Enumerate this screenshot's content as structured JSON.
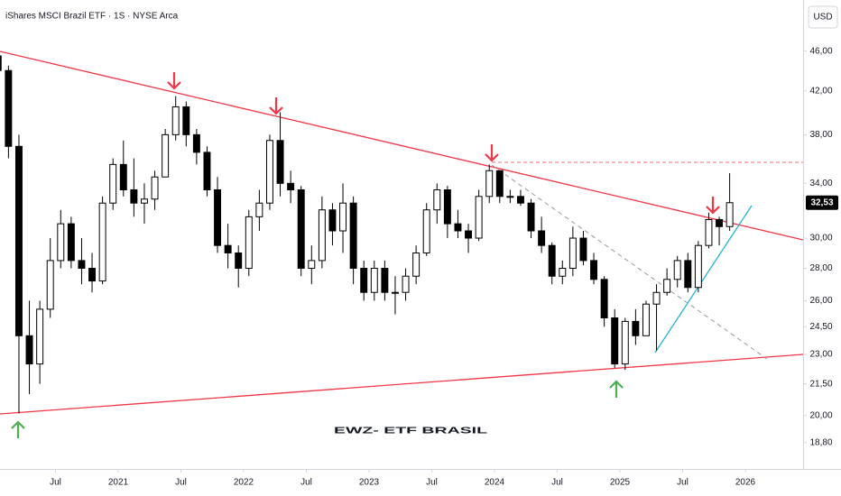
{
  "chart_data": {
    "type": "candlestick",
    "title": "iShares MSCI Brazil ETF · 1S · NYSE Arca",
    "currency": "USD",
    "annotation": "EWZ- ETF BRASIL",
    "log_scale": true,
    "up_color": "#ffffff",
    "down_color": "#000000",
    "x": [
      "2020-01",
      "2020-02",
      "2020-03",
      "2020-04",
      "2020-05",
      "2020-06",
      "2020-07",
      "2020-08",
      "2020-09",
      "2020-10",
      "2020-11",
      "2020-12",
      "2021-01",
      "2021-02",
      "2021-03",
      "2021-04",
      "2021-05",
      "2021-06",
      "2021-07",
      "2021-08",
      "2021-09",
      "2021-10",
      "2021-11",
      "2021-12",
      "2022-01",
      "2022-02",
      "2022-03",
      "2022-04",
      "2022-05",
      "2022-06",
      "2022-07",
      "2022-08",
      "2022-09",
      "2022-10",
      "2022-11",
      "2022-12",
      "2023-01",
      "2023-02",
      "2023-03",
      "2023-04",
      "2023-05",
      "2023-06",
      "2023-07",
      "2023-08",
      "2023-09",
      "2023-10",
      "2023-11",
      "2023-12",
      "2024-01",
      "2024-02",
      "2024-03",
      "2024-04",
      "2024-05",
      "2024-06",
      "2024-07",
      "2024-08",
      "2024-09",
      "2024-10",
      "2024-11",
      "2024-12",
      "2025-01",
      "2025-02",
      "2025-03",
      "2025-04",
      "2025-05",
      "2025-06",
      "2025-07",
      "2025-08",
      "2025-09",
      "2025-10",
      "2025-11"
    ],
    "open": [
      45.5,
      44,
      37,
      24,
      22.5,
      25.5,
      28.5,
      31,
      28.5,
      28,
      27.2,
      32.5,
      35.5,
      33.5,
      32.5,
      32.8,
      34.5,
      38,
      40.5,
      38,
      36.5,
      33.5,
      29.5,
      29,
      28,
      31.5,
      32.5,
      37.5,
      34,
      33.5,
      28,
      28.5,
      32,
      30.5,
      32.5,
      28,
      26.5,
      28,
      26.5,
      26.5,
      27.5,
      29,
      32,
      33.5,
      31,
      30.5,
      30,
      33,
      35,
      33,
      33,
      32.5,
      30.5,
      29.5,
      27.5,
      28,
      30,
      28.5,
      27.3,
      25,
      22.5,
      24.8,
      24,
      25.8,
      26.5,
      27.3,
      28.5,
      26.8,
      29.5,
      31.3,
      30.8
    ],
    "high": [
      46.2,
      44.5,
      38,
      26,
      26,
      30,
      32,
      31.5,
      30,
      29,
      33,
      36,
      37.5,
      36,
      34,
      35,
      38.5,
      41.5,
      41,
      38.5,
      37,
      34.5,
      31,
      29.5,
      32,
      33.5,
      38,
      40,
      35,
      33.8,
      29.5,
      33,
      32.5,
      34,
      33,
      28.5,
      28.5,
      28.5,
      27.5,
      28,
      29.5,
      32.5,
      34,
      33.8,
      32,
      31,
      33.5,
      35.5,
      35,
      33.5,
      33.5,
      32.8,
      31.5,
      29.7,
      28.5,
      30.8,
      30.5,
      29,
      27.5,
      25.5,
      25,
      25.5,
      26,
      27,
      28,
      28.8,
      29,
      29.8,
      31.8,
      31.5,
      34.8
    ],
    "low": [
      43,
      36,
      20.1,
      21,
      21.5,
      25,
      28,
      28,
      27,
      26.5,
      27,
      32,
      33,
      31.5,
      31,
      32,
      34.5,
      37.5,
      37,
      35.5,
      33,
      29,
      28,
      26.8,
      27.5,
      30.5,
      32,
      33,
      32.5,
      27.5,
      27,
      28,
      29.5,
      29,
      27,
      26,
      26,
      26,
      25.2,
      26,
      27,
      28.8,
      31,
      30,
      30,
      29,
      29.8,
      32.5,
      32.5,
      32.5,
      32.3,
      30,
      29,
      27,
      27,
      27.5,
      28.2,
      27,
      24.5,
      22.3,
      22.2,
      23.5,
      24,
      23.2,
      26.3,
      26.8,
      26.5,
      26.5,
      29.3,
      29.5,
      30.5
    ],
    "close": [
      44,
      37,
      24,
      22.5,
      25.5,
      28.5,
      31,
      28.5,
      28,
      27.2,
      32.5,
      35.5,
      33.5,
      32.5,
      32.8,
      34.5,
      38,
      40.5,
      38,
      36.5,
      33.5,
      29.5,
      29,
      28,
      31.5,
      32.5,
      37.5,
      34,
      33.5,
      28,
      28.5,
      32,
      30.5,
      32.5,
      28,
      26.5,
      28,
      26.5,
      26.5,
      27.5,
      29,
      32,
      33.5,
      31,
      30.5,
      30,
      33,
      35,
      33,
      33,
      32.5,
      30.5,
      29.5,
      27.5,
      28,
      30,
      28.5,
      27.3,
      25,
      22.5,
      24.8,
      24,
      25.8,
      26.5,
      27.3,
      28.5,
      26.8,
      29.5,
      31.3,
      30.8,
      32.53
    ],
    "last_price": {
      "value": 32.53,
      "label": "32,53"
    },
    "ylim": [
      51.7,
      17.7
    ],
    "yticks": [
      {
        "value": 46,
        "label": "46,00"
      },
      {
        "value": 42,
        "label": "42,00"
      },
      {
        "value": 38,
        "label": "38,00"
      },
      {
        "value": 34,
        "label": "34,00"
      },
      {
        "value": 30,
        "label": "30,00"
      },
      {
        "value": 28,
        "label": "28,00"
      },
      {
        "value": 26,
        "label": "26,00"
      },
      {
        "value": 24.5,
        "label": "24,50"
      },
      {
        "value": 23,
        "label": "23,00"
      },
      {
        "value": 21.5,
        "label": "21,50"
      },
      {
        "value": 20,
        "label": "20,00"
      },
      {
        "value": 18.8,
        "label": "18,80"
      }
    ],
    "xticks": [
      {
        "value": "2020-07",
        "label": "Jul"
      },
      {
        "value": "2021-01",
        "label": "2021"
      },
      {
        "value": "2021-07",
        "label": "Jul"
      },
      {
        "value": "2022-01",
        "label": "2022"
      },
      {
        "value": "2022-07",
        "label": "Jul"
      },
      {
        "value": "2023-01",
        "label": "2023"
      },
      {
        "value": "2023-07",
        "label": "Jul"
      },
      {
        "value": "2024-01",
        "label": "2024"
      },
      {
        "value": "2024-07",
        "label": "Jul"
      },
      {
        "value": "2025-01",
        "label": "2025"
      },
      {
        "value": "2025-07",
        "label": "Jul"
      },
      {
        "value": "2026-01",
        "label": "2026"
      }
    ]
  }
}
